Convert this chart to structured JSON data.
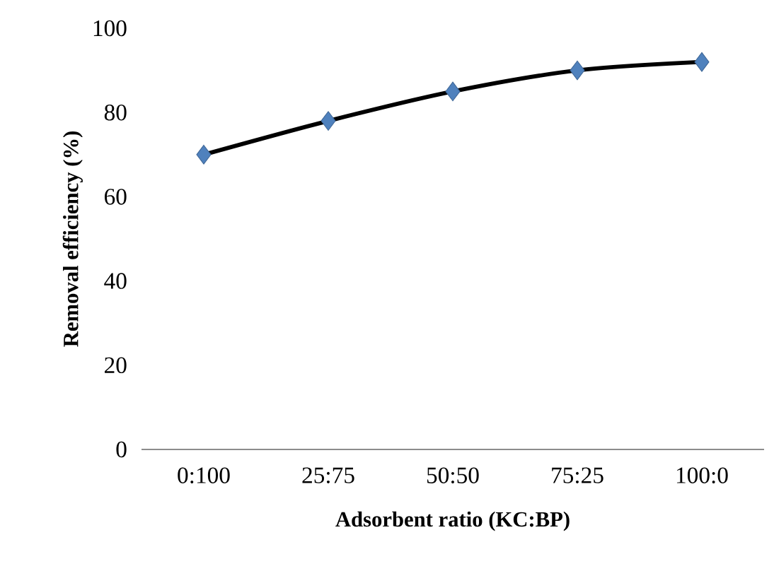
{
  "chart_data": {
    "type": "line",
    "xlabel": "Adsorbent ratio (KC:BP)",
    "ylabel": "Removal efficiency  (%)",
    "categories": [
      "0:100",
      "25:75",
      "50:50",
      "75:25",
      "100:0"
    ],
    "series": [
      {
        "color": "#000000",
        "colors": [
          "#4f81bd",
          "#4f81bd",
          "#4f81bd",
          "#4f81bd",
          "#4f81bd"
        ],
        "values": [
          70,
          78,
          85,
          90,
          92
        ]
      }
    ],
    "ylim": [
      0,
      100
    ],
    "yticks": [
      0,
      20,
      40,
      60,
      80,
      100
    ],
    "marker": "diamond",
    "line_style": "solid",
    "grid": false
  }
}
